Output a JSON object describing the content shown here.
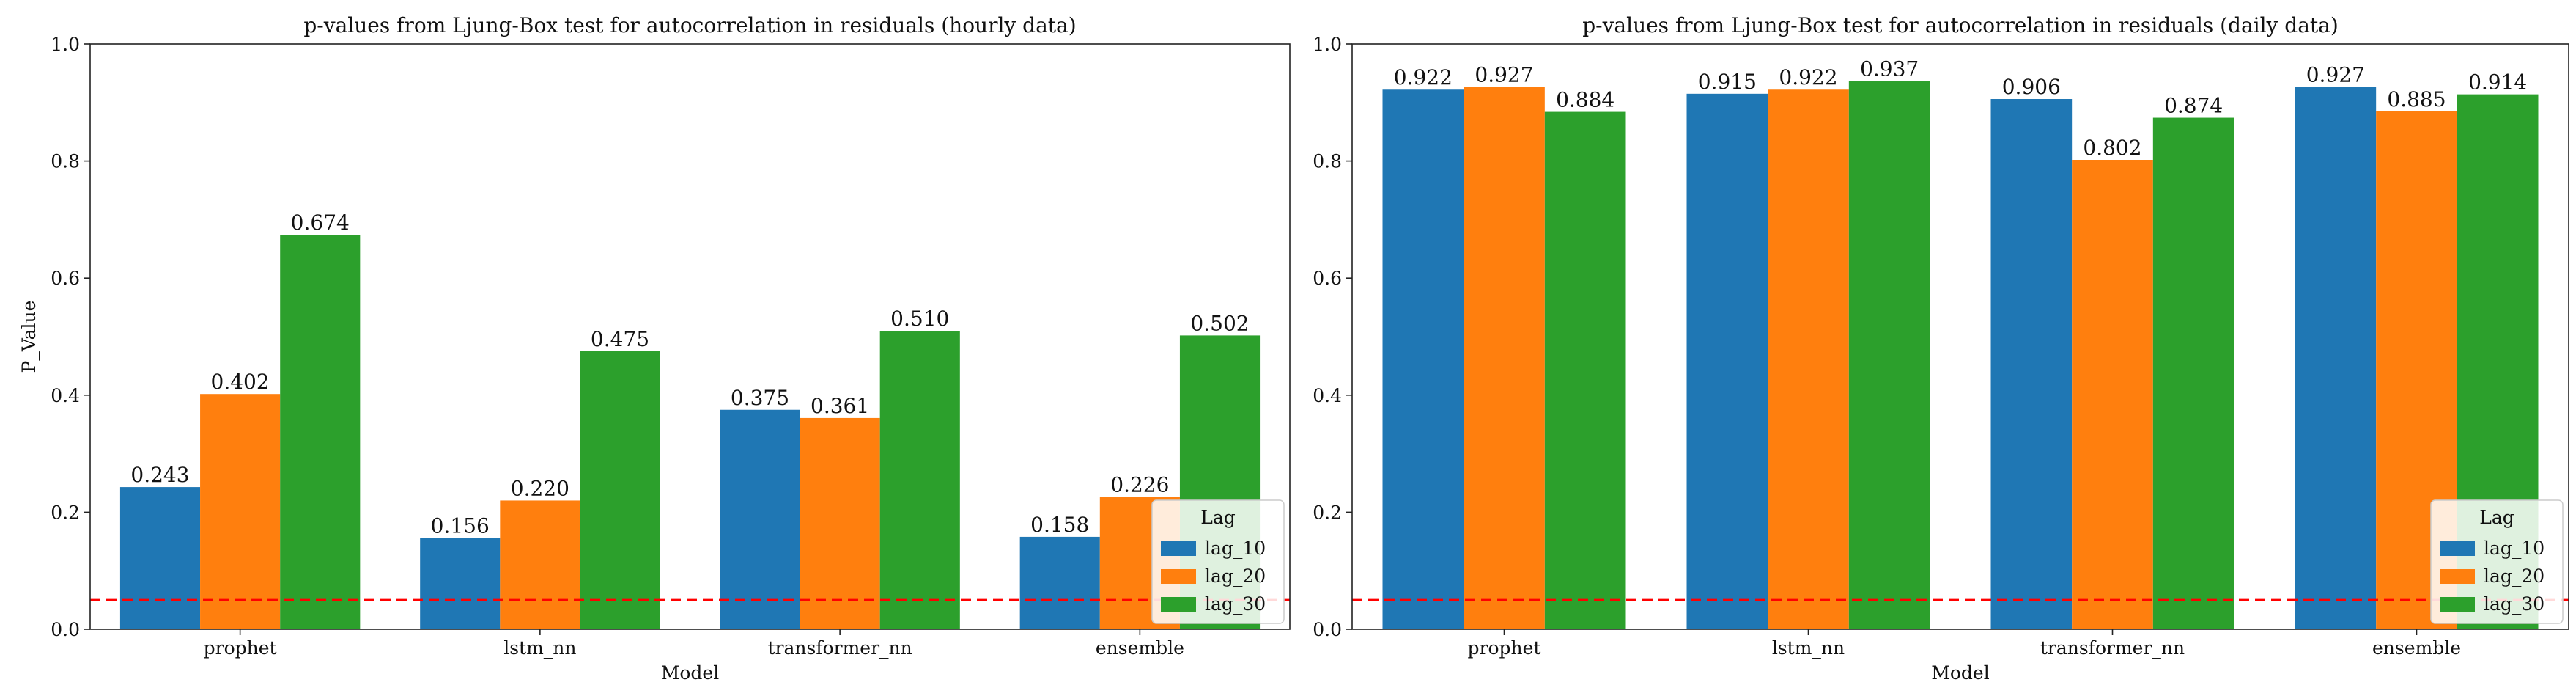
{
  "chart_data": [
    {
      "type": "bar",
      "title": "p-values from Ljung-Box test for autocorrelation in residuals (hourly data)",
      "xlabel": "Model",
      "ylabel": "P_Value",
      "categories": [
        "prophet",
        "lstm_nn",
        "transformer_nn",
        "ensemble"
      ],
      "ylim": [
        0,
        1.0
      ],
      "yticks": [
        "0.0",
        "0.2",
        "0.4",
        "0.6",
        "0.8",
        "1.0"
      ],
      "grid": false,
      "reference_line": {
        "value": 0.05,
        "color": "#ff0000",
        "style": "dashed"
      },
      "legend": {
        "title": "Lag",
        "placement": "lower-right"
      },
      "series": [
        {
          "name": "lag_10",
          "color": "#1f77b4",
          "values": [
            0.243,
            0.156,
            0.375,
            0.158
          ],
          "labels": [
            "0.243",
            "0.156",
            "0.375",
            "0.158"
          ]
        },
        {
          "name": "lag_20",
          "color": "#ff7f0e",
          "values": [
            0.402,
            0.22,
            0.361,
            0.226
          ],
          "labels": [
            "0.402",
            "0.220",
            "0.361",
            "0.226"
          ]
        },
        {
          "name": "lag_30",
          "color": "#2ca02c",
          "values": [
            0.674,
            0.475,
            0.51,
            0.502
          ],
          "labels": [
            "0.674",
            "0.475",
            "0.510",
            "0.502"
          ]
        }
      ]
    },
    {
      "type": "bar",
      "title": "p-values from Ljung-Box test for autocorrelation in residuals (daily data)",
      "xlabel": "Model",
      "ylabel": "",
      "categories": [
        "prophet",
        "lstm_nn",
        "transformer_nn",
        "ensemble"
      ],
      "ylim": [
        0,
        1.0
      ],
      "yticks": [
        "0.0",
        "0.2",
        "0.4",
        "0.6",
        "0.8",
        "1.0"
      ],
      "grid": false,
      "reference_line": {
        "value": 0.05,
        "color": "#ff0000",
        "style": "dashed"
      },
      "legend": {
        "title": "Lag",
        "placement": "lower-right"
      },
      "series": [
        {
          "name": "lag_10",
          "color": "#1f77b4",
          "values": [
            0.922,
            0.915,
            0.906,
            0.927
          ],
          "labels": [
            "0.922",
            "0.915",
            "0.906",
            "0.927"
          ]
        },
        {
          "name": "lag_20",
          "color": "#ff7f0e",
          "values": [
            0.927,
            0.922,
            0.802,
            0.885
          ],
          "labels": [
            "0.927",
            "0.922",
            "0.802",
            "0.885"
          ]
        },
        {
          "name": "lag_30",
          "color": "#2ca02c",
          "values": [
            0.884,
            0.937,
            0.874,
            0.914
          ],
          "labels": [
            "0.884",
            "0.937",
            "0.874",
            "0.914"
          ]
        }
      ]
    }
  ]
}
